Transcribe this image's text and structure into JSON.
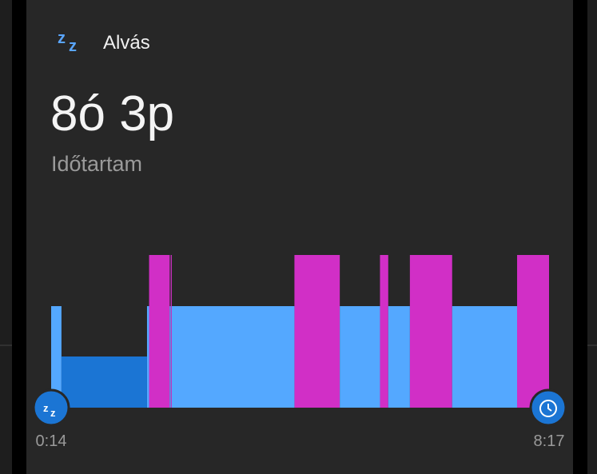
{
  "header": {
    "title": "Alvás"
  },
  "summary": {
    "value": "8ó 3p",
    "label": "Időtartam"
  },
  "chart_data": {
    "type": "hypnogram",
    "xlim": [
      0,
      483
    ],
    "xticks": [
      {
        "value": 0,
        "label": "0:14"
      },
      {
        "value": 483,
        "label": "8:17"
      }
    ],
    "series": [
      {
        "color": "#d12fc6",
        "intervals": [
          [
            95,
            115
          ],
          [
            116,
            117
          ],
          [
            236,
            280
          ],
          [
            319,
            327
          ],
          [
            348,
            389
          ],
          [
            452,
            483
          ]
        ]
      },
      {
        "color": "#54a8ff",
        "intervals": [
          [
            0,
            10
          ],
          [
            93,
            95
          ],
          [
            115,
            116
          ],
          [
            117,
            236
          ],
          [
            280,
            319
          ],
          [
            327,
            348
          ],
          [
            389,
            452
          ]
        ]
      },
      {
        "color": "#1b75d4",
        "intervals": [
          [
            10,
            93
          ]
        ]
      }
    ]
  }
}
